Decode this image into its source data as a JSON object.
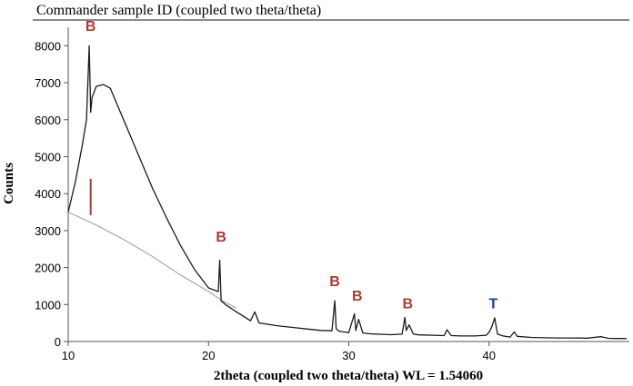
{
  "chart_data": {
    "type": "line",
    "title": "Commander sample ID (coupled two theta/theta)",
    "xlabel": "2theta (coupled two theta/theta) WL = 1.54060",
    "ylabel": "Counts",
    "xlim": [
      10,
      50
    ],
    "ylim": [
      0,
      8500
    ],
    "xticks": [
      10,
      20,
      30,
      40
    ],
    "yticks": [
      0,
      1000,
      2000,
      3000,
      4000,
      5000,
      6000,
      7000,
      8000
    ],
    "grid": false,
    "colors": {
      "pattern": "#1a1a1a",
      "background": "#a8a8a8",
      "peak_B": "#b03a2e",
      "peak_T": "#1f3f9e"
    },
    "series": [
      {
        "x": [
          10,
          10.5,
          11,
          11.3,
          11.5,
          11.6,
          11.7,
          11.8,
          12,
          12.5,
          13,
          13.5,
          14,
          15,
          16,
          17,
          18,
          19,
          20,
          20.7,
          20.8,
          20.9,
          21.2,
          22,
          23,
          23.3,
          23.6,
          24,
          25,
          26,
          27,
          28,
          28.8,
          29.0,
          29.1,
          29.3,
          29.6,
          30,
          30.4,
          30.5,
          30.7,
          31,
          31.5,
          32,
          33,
          33.8,
          34.0,
          34.1,
          34.3,
          34.6,
          35,
          36,
          36.8,
          37,
          37.3,
          38,
          39,
          39.8,
          40.0,
          40.2,
          40.4,
          40.6,
          41,
          41.5,
          41.8,
          42,
          43,
          44,
          45,
          46,
          47,
          48,
          48.5,
          49,
          49.8
        ],
        "values": [
          3500,
          4300,
          5300,
          6000,
          8000,
          6200,
          6600,
          6700,
          6900,
          6950,
          6850,
          6400,
          5950,
          5050,
          4150,
          3350,
          2600,
          1950,
          1450,
          1350,
          2200,
          1100,
          1000,
          800,
          560,
          800,
          500,
          480,
          420,
          380,
          340,
          300,
          290,
          1100,
          350,
          280,
          260,
          240,
          750,
          300,
          600,
          230,
          210,
          200,
          185,
          200,
          650,
          300,
          450,
          200,
          180,
          170,
          160,
          320,
          160,
          150,
          150,
          170,
          250,
          400,
          640,
          200,
          150,
          120,
          260,
          140,
          110,
          100,
          95,
          95,
          90,
          130,
          85,
          80,
          80
        ]
      },
      {
        "x": [
          10,
          12,
          14,
          16,
          18,
          20,
          21,
          22
        ],
        "values": [
          3500,
          3150,
          2750,
          2300,
          1800,
          1350,
          1100,
          900
        ]
      }
    ],
    "reference_lines": [
      {
        "x": 11.6,
        "height": 4400
      }
    ],
    "annotations": [
      {
        "text": "B",
        "x": 11.6,
        "y": 8400
      },
      {
        "text": "B",
        "x": 20.9,
        "y": 2700
      },
      {
        "text": "B",
        "x": 29.0,
        "y": 1500
      },
      {
        "text": "B",
        "x": 30.6,
        "y": 1100
      },
      {
        "text": "B",
        "x": 34.2,
        "y": 900
      },
      {
        "text": "T",
        "x": 40.3,
        "y": 900
      }
    ]
  }
}
